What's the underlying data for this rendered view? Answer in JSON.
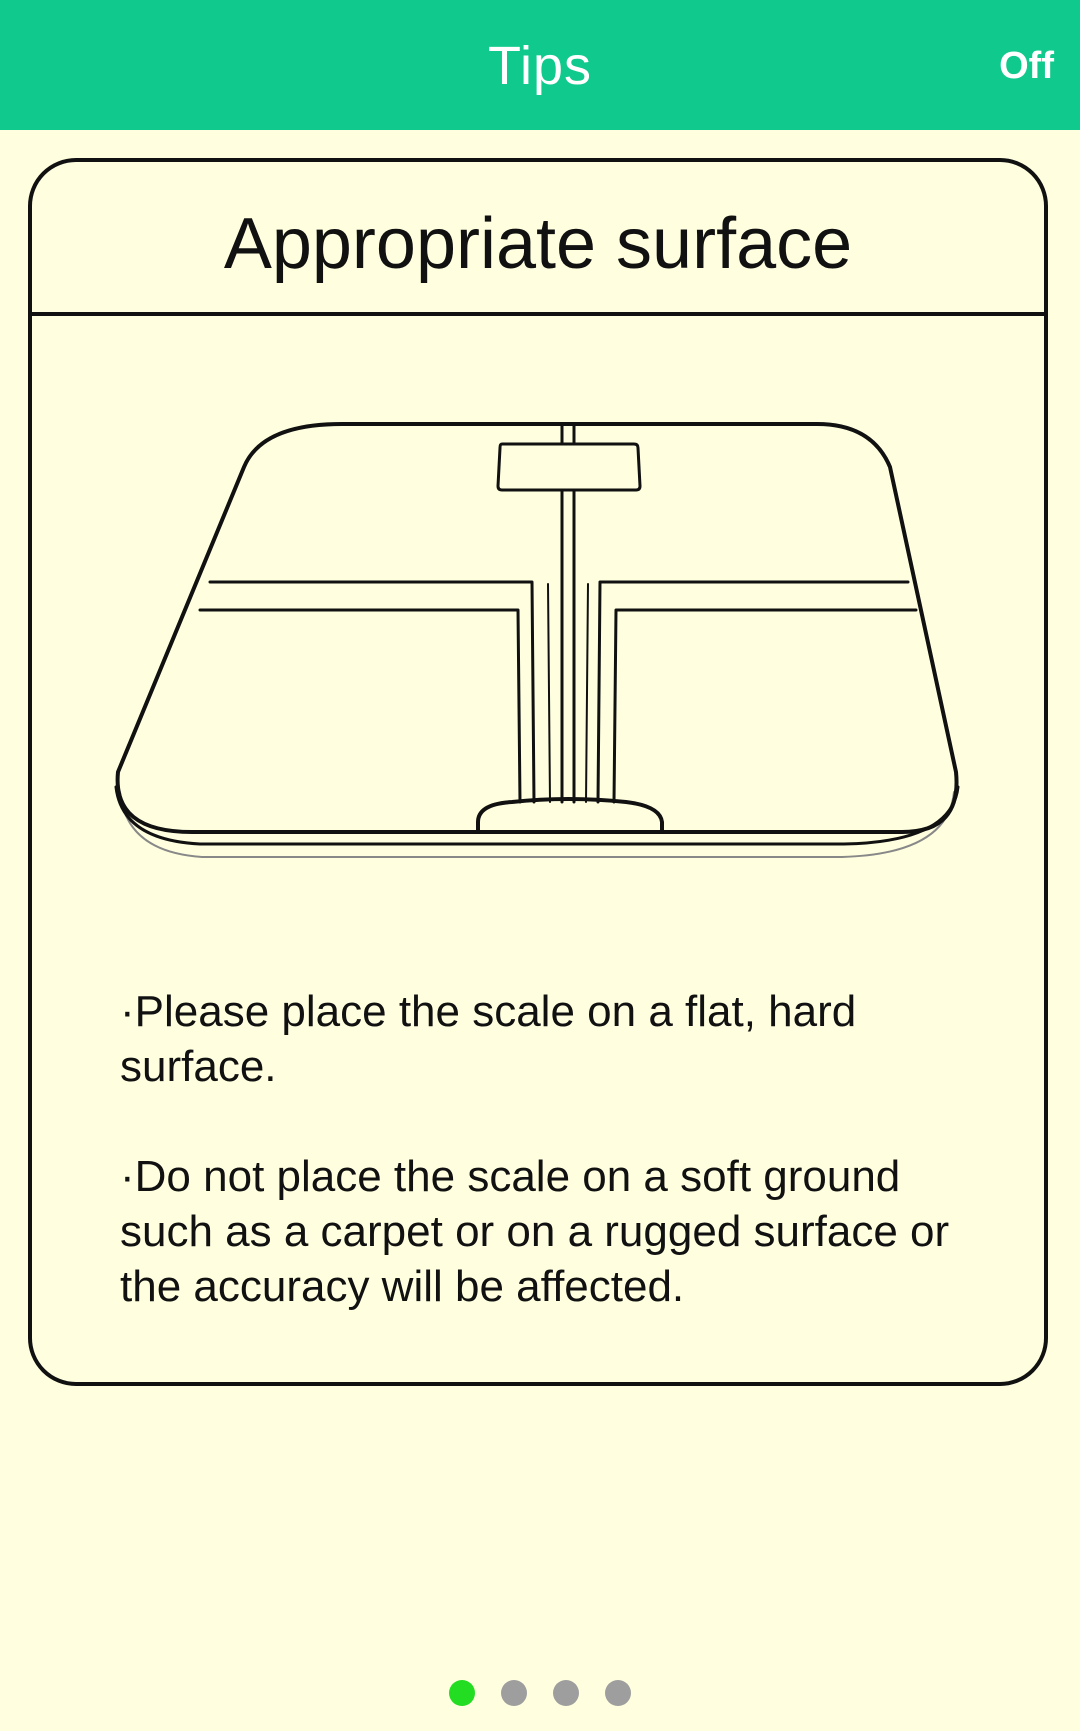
{
  "header": {
    "title": "Tips",
    "off_label": "Off",
    "background_color": "#10c98c"
  },
  "card": {
    "title": "Appropriate surface",
    "illustration_icon": "bathroom-scale-icon",
    "tips": [
      "·Please place the scale on a flat, hard surface.",
      "·Do not place the scale on a soft ground such as a carpet or on a rugged surface or the accuracy will be affected."
    ]
  },
  "pager": {
    "total_pages": 4,
    "current_page": 1,
    "active_color": "#22dd22",
    "inactive_color": "#9e9e9e"
  }
}
